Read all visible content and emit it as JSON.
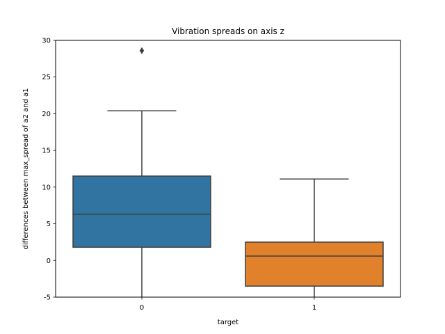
{
  "chart_data": {
    "type": "box",
    "title": "Vibration spreads on axis z",
    "xlabel": "target",
    "ylabel": "differences between max_spread of a2 and a1",
    "categories": [
      "0",
      "1"
    ],
    "ylim": [
      -5,
      30
    ],
    "yticks": [
      -5,
      0,
      5,
      10,
      15,
      20,
      25,
      30
    ],
    "grid": false,
    "boxes": [
      {
        "category": "0",
        "whisker_low": -5,
        "q1": 1.8,
        "median": 6.3,
        "q3": 11.5,
        "whisker_high": 20.4,
        "outliers": [
          28.6
        ],
        "color": "#3274a1"
      },
      {
        "category": "1",
        "whisker_low": -5,
        "q1": -3.5,
        "median": 0.6,
        "q3": 2.5,
        "whisker_high": 11.1,
        "outliers": [],
        "color": "#e1812c"
      }
    ]
  }
}
